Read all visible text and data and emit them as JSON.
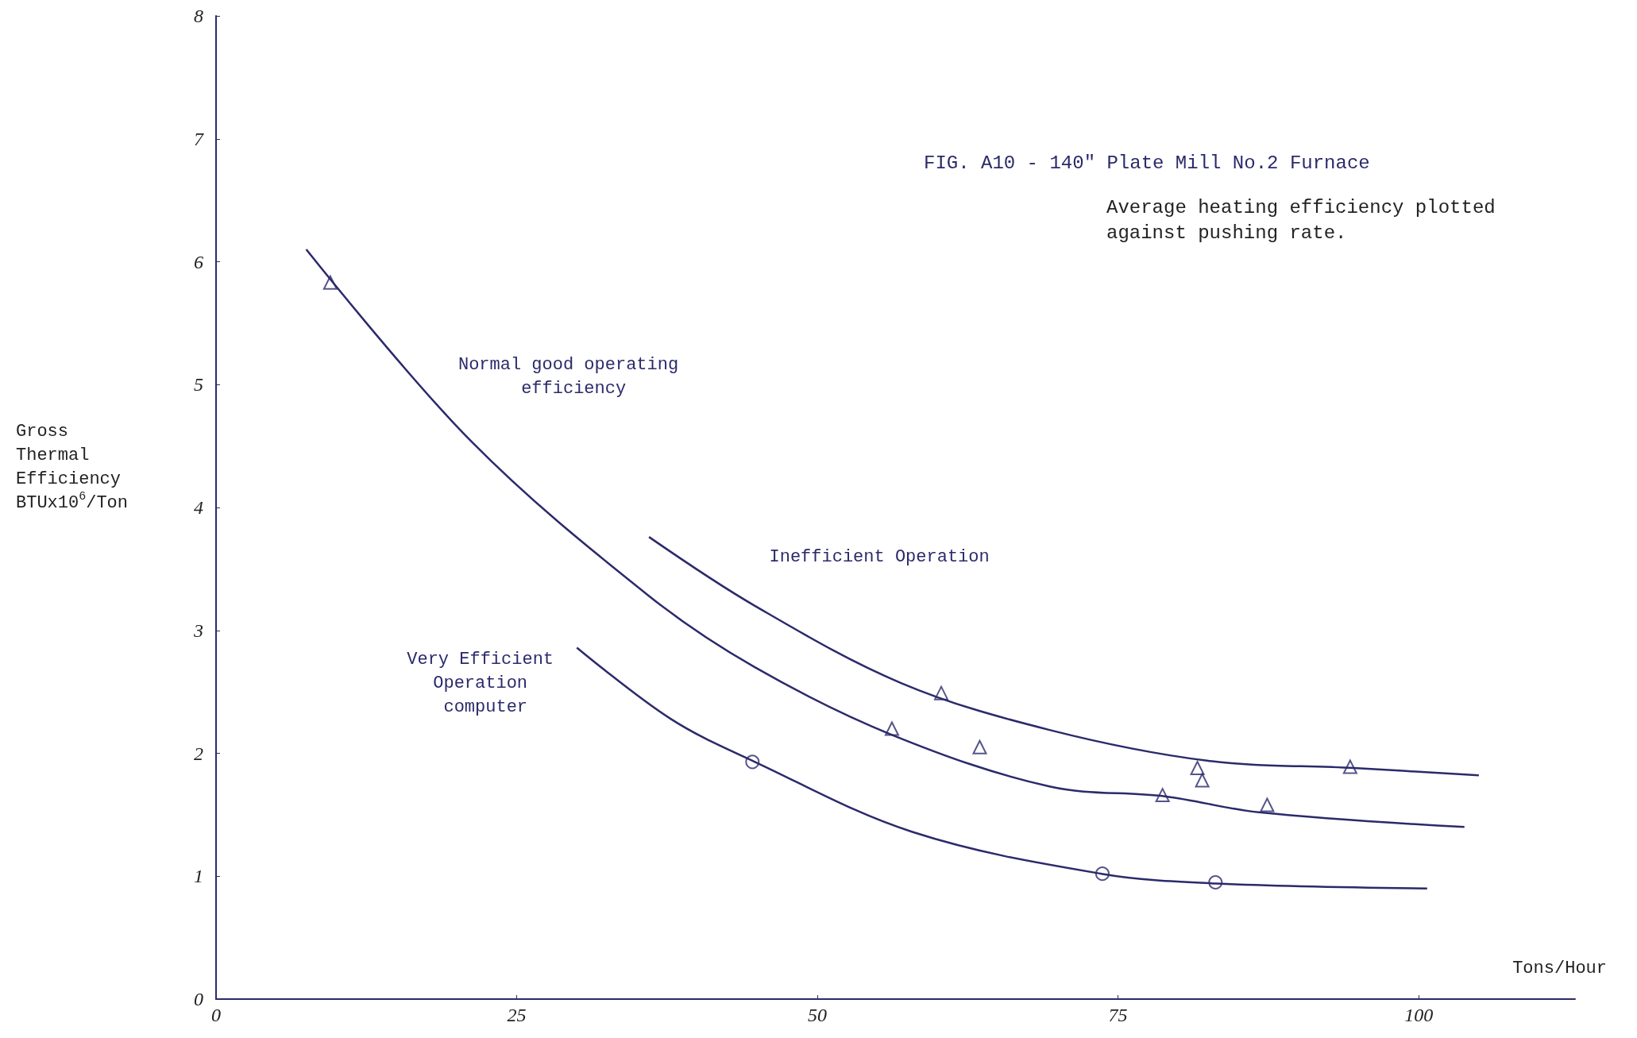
{
  "chart_data": {
    "type": "line",
    "title": "FIG. A10 - 140\" Plate Mill No.2 Furnace",
    "subtitle": "Average heating efficiency plotted against pushing rate.",
    "xlabel": "Tons/Hour",
    "ylabel": "Gross Thermal Efficiency BTUx10$^{6}$/Ton",
    "xlim": [
      0,
      113
    ],
    "xticks": [
      0,
      25,
      50,
      75,
      100
    ],
    "ylim": [
      0,
      8
    ],
    "yticks": [
      0,
      1,
      2,
      3,
      4,
      5,
      6,
      7,
      8
    ],
    "grid": false,
    "series": [
      {
        "name": "Normal good operating efficiency",
        "color": "#2b2a6b",
        "marker": "none",
        "x": [
          7.5,
          21.2,
          36,
          44.8,
          56.2,
          69.3,
          78.9,
          86.7,
          103.8
        ],
        "values": [
          6.1,
          4.54,
          3.28,
          2.7,
          2.15,
          1.73,
          1.65,
          1.52,
          1.4
        ]
      },
      {
        "name": "Inefficient Operation",
        "color": "#2b2a6b",
        "marker": "none",
        "x": [
          36,
          44.8,
          57,
          69.3,
          82.4,
          94.6,
          105
        ],
        "values": [
          3.76,
          3.2,
          2.57,
          2.19,
          1.94,
          1.88,
          1.82
        ]
      },
      {
        "name": "Very Efficient Operation computer",
        "color": "#2b2a6b",
        "marker": "none",
        "x": [
          30,
          37.8,
          44.8,
          57.9,
          73.6,
          83.2,
          100.7
        ],
        "values": [
          2.86,
          2.28,
          1.93,
          1.36,
          1.02,
          0.94,
          0.9
        ]
      },
      {
        "type": "scatter",
        "color": "#2b2a6b",
        "marker": "triangle",
        "x": [
          9.5,
          56.2,
          63.5,
          78.7,
          81.6,
          82,
          87.4,
          60.3,
          94.3
        ],
        "values": [
          5.83,
          2.2,
          2.05,
          1.66,
          1.88,
          1.78,
          1.58,
          2.49,
          1.89
        ]
      },
      {
        "type": "scatter",
        "color": "#2b2a6b",
        "marker": "circle",
        "x": [
          44.6,
          73.7,
          83.1
        ],
        "values": [
          1.93,
          1.02,
          0.95
        ]
      }
    ]
  }
}
